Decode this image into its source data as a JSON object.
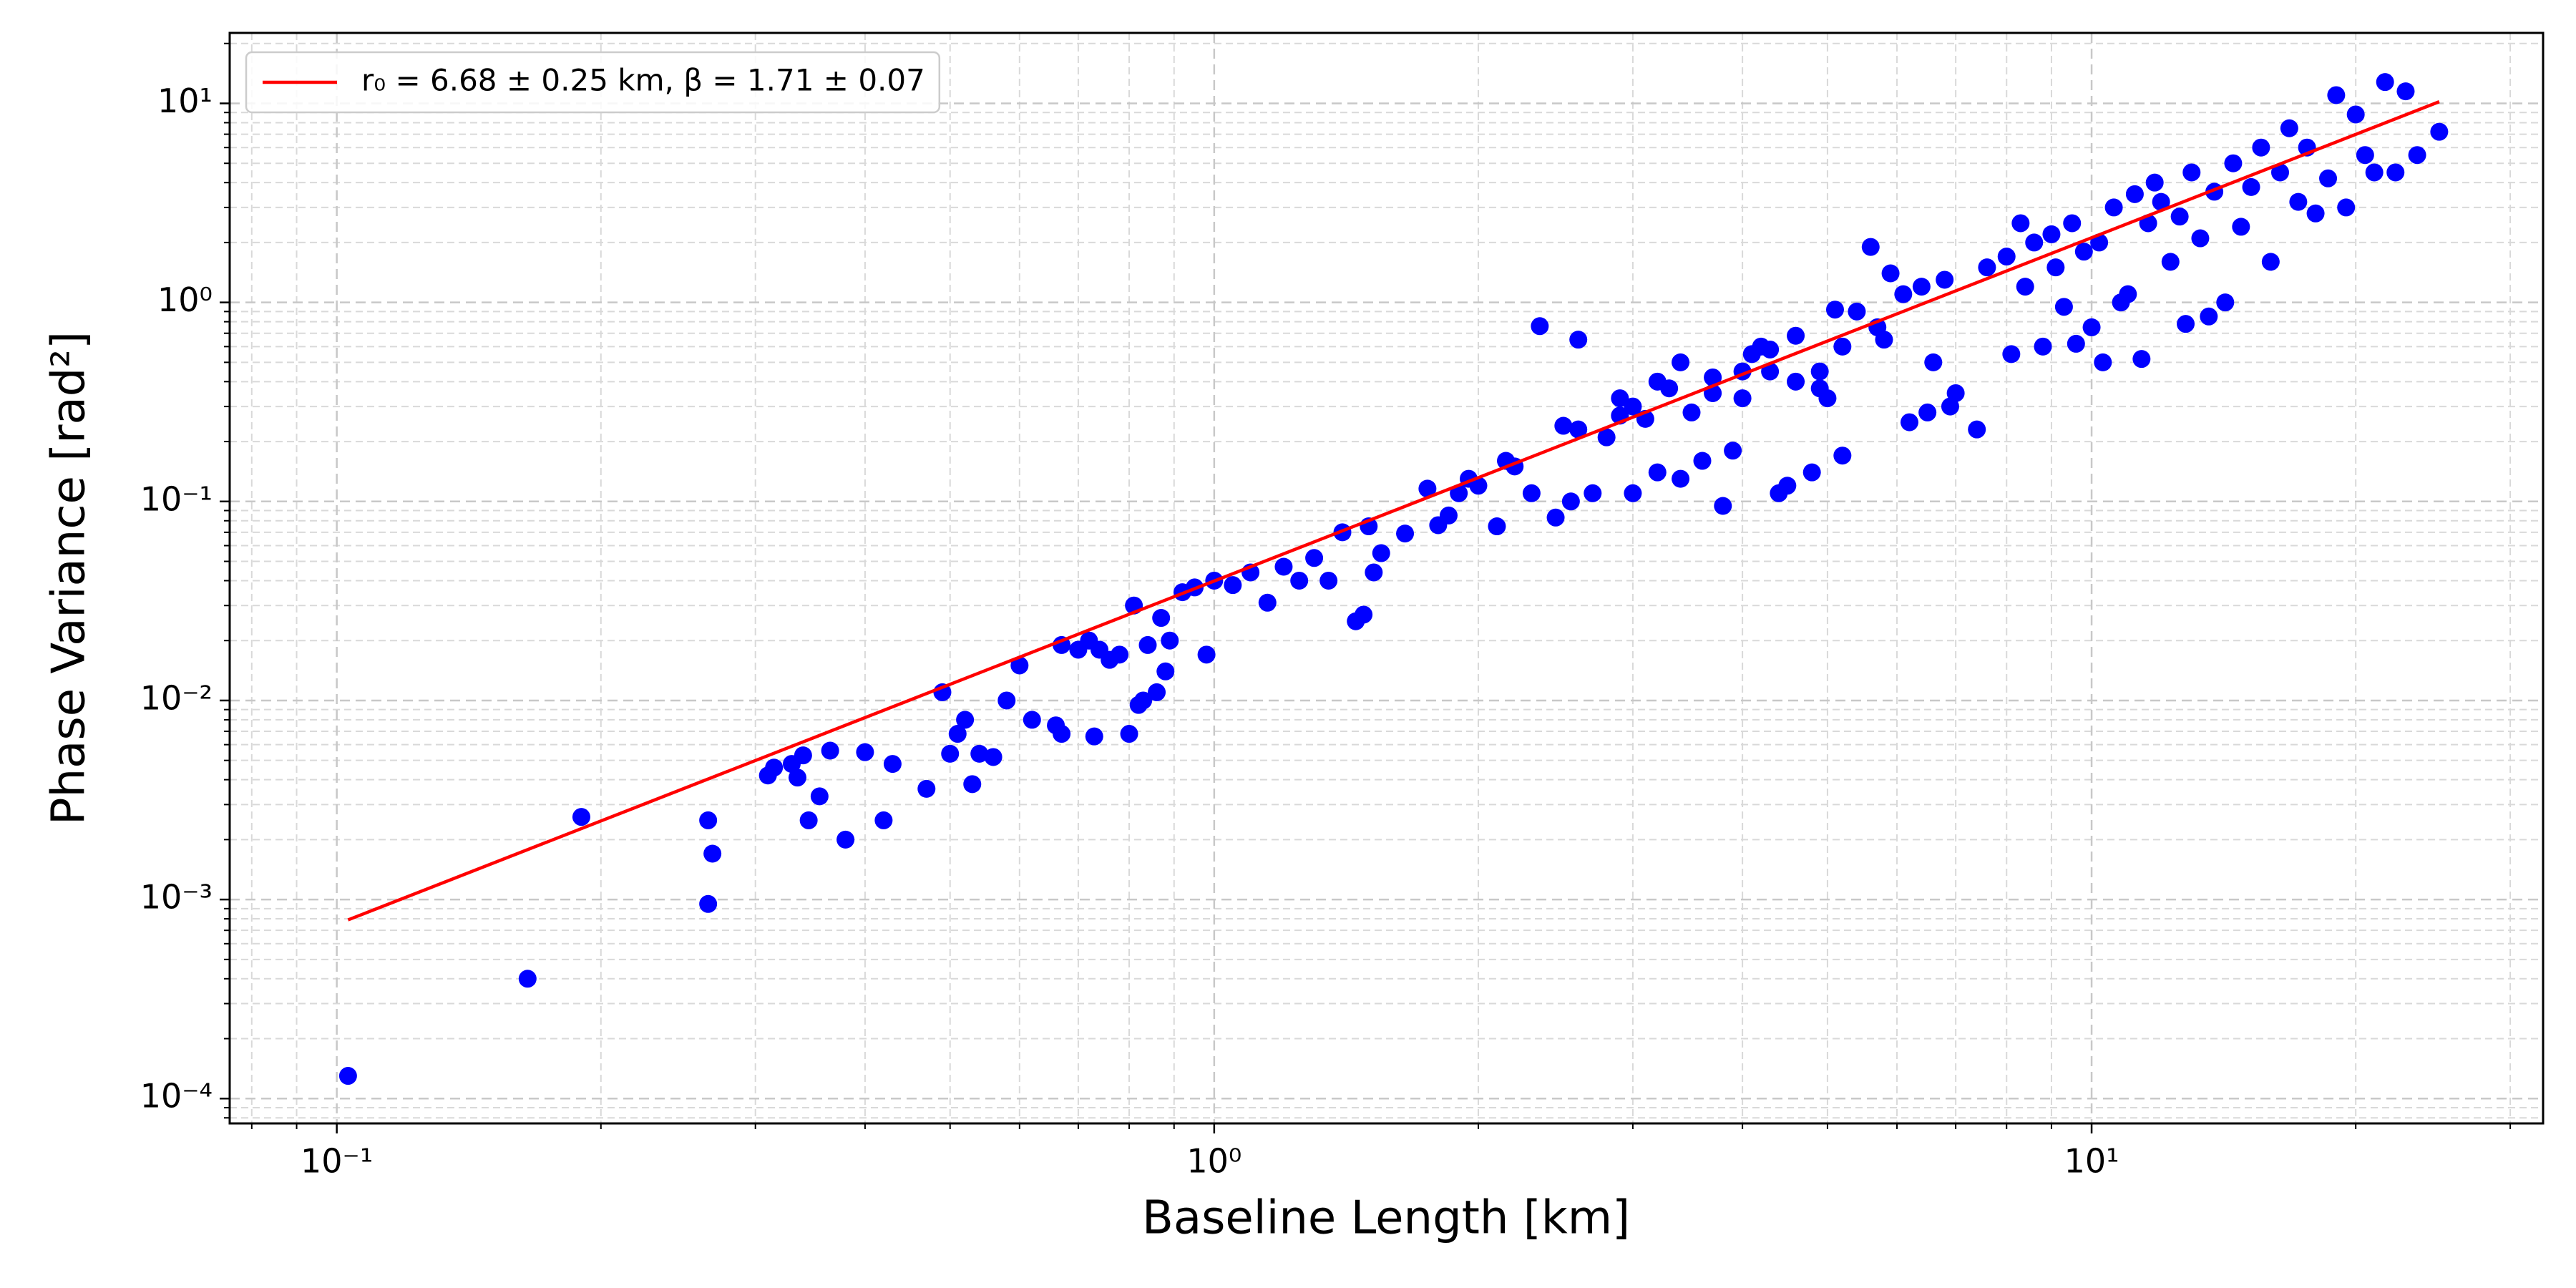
{
  "chart_data": {
    "type": "scatter",
    "xlabel": "Baseline Length [km]",
    "ylabel": "Phase Variance [rad²]",
    "xscale": "log",
    "yscale": "log",
    "xlim": [
      0.0755,
      32.7
    ],
    "ylim": [
      7.5e-05,
      22.6
    ],
    "xticks": [
      {
        "value": 0.1,
        "label": "10⁻¹"
      },
      {
        "value": 1,
        "label": "10⁰"
      },
      {
        "value": 10,
        "label": "10¹"
      }
    ],
    "yticks": [
      {
        "value": 0.0001,
        "label": "10⁻⁴"
      },
      {
        "value": 0.001,
        "label": "10⁻³"
      },
      {
        "value": 0.01,
        "label": "10⁻²"
      },
      {
        "value": 0.1,
        "label": "10⁻¹"
      },
      {
        "value": 1,
        "label": "10⁰"
      },
      {
        "value": 10,
        "label": "10¹"
      }
    ],
    "grid": true,
    "minor_grid": true,
    "legend": "upper left",
    "series": [
      {
        "type": "scatter",
        "color": "#0000ff",
        "x": [
          0.103,
          0.165,
          0.19,
          0.265,
          0.268,
          0.265,
          0.31,
          0.315,
          0.33,
          0.335,
          0.34,
          0.345,
          0.355,
          0.365,
          0.38,
          0.4,
          0.42,
          0.43,
          0.47,
          0.49,
          0.5,
          0.51,
          0.52,
          0.53,
          0.54,
          0.56,
          0.58,
          0.6,
          0.62,
          0.66,
          0.67,
          0.67,
          0.7,
          0.72,
          0.73,
          0.74,
          0.76,
          0.78,
          0.8,
          0.81,
          0.82,
          0.83,
          0.84,
          0.86,
          0.87,
          0.88,
          0.89,
          0.92,
          0.95,
          0.98,
          1.0,
          1.05,
          1.1,
          1.15,
          1.2,
          1.25,
          1.3,
          1.35,
          1.4,
          1.45,
          1.48,
          1.5,
          1.52,
          1.55,
          1.65,
          1.75,
          1.8,
          1.85,
          1.9,
          1.95,
          2.0,
          2.1,
          2.15,
          2.2,
          2.3,
          2.35,
          2.45,
          2.5,
          2.55,
          2.6,
          2.6,
          2.7,
          2.8,
          2.9,
          2.9,
          3.0,
          3.0,
          3.1,
          3.2,
          3.2,
          3.3,
          3.4,
          3.4,
          3.5,
          3.6,
          3.7,
          3.7,
          3.8,
          3.9,
          4.0,
          4.0,
          4.1,
          4.2,
          4.3,
          4.3,
          4.4,
          4.5,
          4.6,
          4.6,
          4.8,
          4.9,
          4.9,
          5.0,
          5.1,
          5.2,
          5.2,
          5.4,
          5.6,
          5.7,
          5.8,
          5.9,
          6.1,
          6.2,
          6.4,
          6.5,
          6.6,
          6.8,
          6.9,
          7.0,
          7.4,
          7.6,
          8.0,
          8.1,
          8.3,
          8.4,
          8.6,
          8.8,
          9.0,
          9.1,
          9.3,
          9.5,
          9.6,
          9.8,
          10.0,
          10.2,
          10.3,
          10.6,
          10.8,
          11.0,
          11.2,
          11.4,
          11.6,
          11.8,
          12.0,
          12.3,
          12.6,
          12.8,
          13.0,
          13.3,
          13.6,
          13.8,
          14.2,
          14.5,
          14.8,
          15.2,
          15.6,
          16.0,
          16.4,
          16.8,
          17.2,
          17.6,
          18.0,
          18.6,
          19.0,
          19.5,
          20.0,
          20.5,
          21.0,
          21.6,
          22.2,
          22.8,
          23.5,
          24.9
        ],
        "values": [
          0.00013,
          0.0004,
          0.0026,
          0.0025,
          0.0017,
          0.00095,
          0.0042,
          0.0046,
          0.0048,
          0.0041,
          0.0053,
          0.0025,
          0.0033,
          0.0056,
          0.002,
          0.0055,
          0.0025,
          0.0048,
          0.0036,
          0.011,
          0.0054,
          0.0068,
          0.008,
          0.0038,
          0.0054,
          0.0052,
          0.01,
          0.015,
          0.008,
          0.0075,
          0.0068,
          0.019,
          0.018,
          0.02,
          0.0066,
          0.018,
          0.016,
          0.017,
          0.0068,
          0.03,
          0.0095,
          0.01,
          0.019,
          0.011,
          0.026,
          0.014,
          0.02,
          0.035,
          0.037,
          0.017,
          0.04,
          0.038,
          0.044,
          0.031,
          0.047,
          0.04,
          0.052,
          0.04,
          0.07,
          0.025,
          0.027,
          0.075,
          0.044,
          0.055,
          0.069,
          0.116,
          0.076,
          0.085,
          0.11,
          0.13,
          0.12,
          0.075,
          0.16,
          0.15,
          0.11,
          0.76,
          0.083,
          0.24,
          0.1,
          0.65,
          0.23,
          0.11,
          0.21,
          0.33,
          0.27,
          0.11,
          0.3,
          0.26,
          0.14,
          0.4,
          0.37,
          0.13,
          0.5,
          0.28,
          0.16,
          0.42,
          0.35,
          0.095,
          0.18,
          0.33,
          0.45,
          0.55,
          0.6,
          0.45,
          0.58,
          0.11,
          0.12,
          0.68,
          0.4,
          0.14,
          0.37,
          0.45,
          0.33,
          0.92,
          0.17,
          0.6,
          0.9,
          1.9,
          0.75,
          0.65,
          1.4,
          1.1,
          0.25,
          1.2,
          0.28,
          0.5,
          1.3,
          0.3,
          0.35,
          0.23,
          1.5,
          1.7,
          0.55,
          2.5,
          1.2,
          2.0,
          0.6,
          2.2,
          1.5,
          0.95,
          2.5,
          0.62,
          1.8,
          0.75,
          2.0,
          0.5,
          3.0,
          1.0,
          1.1,
          3.5,
          0.52,
          2.5,
          4.0,
          3.2,
          1.6,
          2.7,
          0.78,
          4.5,
          2.1,
          0.85,
          3.6,
          1.0,
          5.0,
          2.4,
          3.8,
          6.0,
          1.6,
          4.5,
          7.5,
          3.2,
          6.0,
          2.8,
          4.2,
          11.0,
          3.0,
          8.8,
          5.5,
          4.5,
          12.8,
          4.5,
          11.5,
          5.5,
          7.2
        ]
      },
      {
        "type": "line",
        "name": "r₀ = 6.68 ± 0.25 km,   β = 1.71 ± 0.07",
        "color": "#ff0000",
        "x": [
          0.103,
          24.9
        ],
        "values": [
          0.00079,
          10.2
        ]
      }
    ]
  }
}
